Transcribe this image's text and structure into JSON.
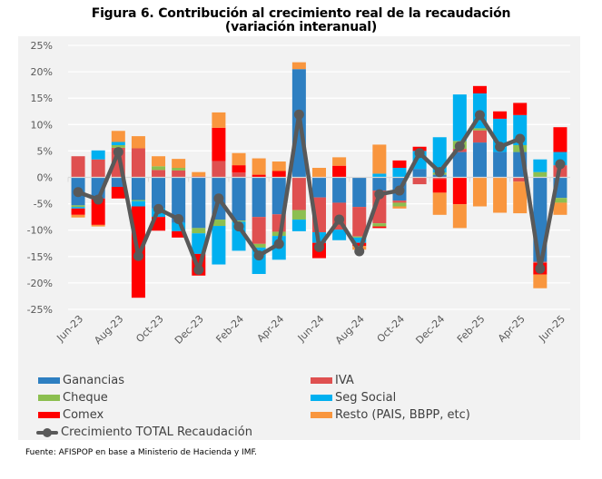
{
  "title_line1": "Figura 6.  Contribución al crecimiento real de la recaudación",
  "title_line2": "(variación interanual)",
  "source": "Fuente: AFISPOP en base a Ministerio de Hacienda y IMF.",
  "colors": {
    "Ganancias": "#2e7fc1",
    "IVA": "#df5050",
    "Cheque": "#8cbf50",
    "Seg Social": "#00b0f0",
    "Comex": "#ff0000",
    "Resto": "#f9963e",
    "Total": "#595959",
    "grid": "#ffffff",
    "axis": "#d9d9d9"
  },
  "legend": [
    {
      "key": "Ganancias",
      "label": "Ganancias"
    },
    {
      "key": "IVA",
      "label": "IVA"
    },
    {
      "key": "Cheque",
      "label": "Cheque"
    },
    {
      "key": "Seg Social",
      "label": "Seg Social"
    },
    {
      "key": "Comex",
      "label": "Comex"
    },
    {
      "key": "Resto",
      "label": "Resto (PAIS, BBPP, etc)"
    },
    {
      "key": "Total",
      "label": "Crecimiento TOTAL Recaudación"
    }
  ],
  "chart_data": {
    "type": "bar",
    "stacked": true,
    "title": "Figura 6. Contribución al crecimiento real de la recaudación (variación interanual)",
    "xlabel": "",
    "ylabel": "",
    "ylim": [
      -25,
      25
    ],
    "yticks": [
      25,
      20,
      15,
      10,
      5,
      0,
      -5,
      -10,
      -15,
      -20,
      -25
    ],
    "ytick_labels": [
      "25%",
      "20%",
      "15%",
      "10%",
      "5%",
      "0%",
      "-5%",
      "-10%",
      "-15%",
      "-20%",
      "-25%"
    ],
    "grid": true,
    "legend_position": "bottom",
    "categories": [
      "Jun-23",
      "Jul-23",
      "Aug-23",
      "Sep-23",
      "Oct-23",
      "Nov-23",
      "Dec-23",
      "Jan-24",
      "Feb-24",
      "Mar-24",
      "Apr-24",
      "May-24",
      "Jun-24",
      "Jul-24",
      "Aug-24",
      "Sep-24",
      "Oct-24",
      "Nov-24",
      "Dec-24",
      "Jan-25",
      "Feb-25",
      "Mar-25",
      "Apr-25",
      "May-25",
      "Jun-25"
    ],
    "tick_labels": [
      "Jun-23",
      "Aug-23",
      "Oct-23",
      "Dec-23",
      "Feb-24",
      "Apr-24",
      "Jun-24",
      "Aug-24",
      "Oct-24",
      "Dec-24",
      "Feb-25",
      "Apr-25",
      "Jun-25"
    ],
    "series": [
      {
        "name": "Ganancias",
        "values": [
          -5.3,
          -4.0,
          -1.8,
          -4.3,
          -5.9,
          -8.6,
          -9.6,
          -8.0,
          -8.2,
          -7.5,
          -7.0,
          20.5,
          -3.8,
          -4.8,
          -5.6,
          -2.5,
          -4.4,
          1.6,
          0.5,
          4.8,
          6.6,
          4.8,
          4.8,
          -16.0,
          -3.9
        ]
      },
      {
        "name": "IVA",
        "values": [
          4.0,
          3.4,
          5.6,
          5.5,
          1.4,
          1.3,
          0.2,
          3.1,
          0.9,
          -5.1,
          -3.3,
          -6.2,
          -6.6,
          -5.1,
          -5.6,
          -6.2,
          -0.4,
          -1.3,
          -0.3,
          0.6,
          2.3,
          0.0,
          -0.8,
          -0.2,
          2.3
        ]
      },
      {
        "name": "Cheque",
        "values": [
          -0.3,
          0.0,
          0.5,
          -0.2,
          0.7,
          0.5,
          -1.0,
          -1.2,
          -0.2,
          -0.7,
          -0.8,
          -1.8,
          0.0,
          0.0,
          -0.2,
          -0.6,
          -0.7,
          0.0,
          0.4,
          1.5,
          0.4,
          0.0,
          1.3,
          1.0,
          -0.9
        ]
      },
      {
        "name": "Seg Social",
        "values": [
          -0.3,
          1.7,
          0.6,
          -1.0,
          -1.6,
          -1.6,
          -3.9,
          -7.3,
          -5.5,
          -5.0,
          -4.5,
          -2.2,
          -2.0,
          -2.0,
          -1.0,
          0.7,
          1.8,
          3.4,
          6.7,
          8.8,
          6.6,
          6.3,
          5.7,
          2.4,
          2.5
        ]
      },
      {
        "name": "Comex",
        "values": [
          -1.2,
          -5.0,
          -2.2,
          -17.3,
          -2.6,
          -1.2,
          -4.1,
          6.3,
          1.4,
          0.5,
          1.2,
          0.0,
          -2.9,
          2.2,
          -0.6,
          -0.3,
          1.4,
          0.8,
          -2.6,
          -5.1,
          1.4,
          1.4,
          2.3,
          -2.2,
          4.7
        ]
      },
      {
        "name": "Resto",
        "values": [
          -0.5,
          -0.3,
          2.1,
          2.3,
          1.9,
          1.7,
          0.8,
          2.9,
          2.3,
          3.1,
          1.8,
          1.3,
          1.8,
          1.6,
          -0.7,
          5.5,
          -0.4,
          0.0,
          -4.2,
          -4.5,
          -5.5,
          -6.7,
          -6.0,
          -2.6,
          -2.3
        ]
      }
    ],
    "line": {
      "name": "Crecimiento TOTAL Recaudación",
      "values": [
        -2.8,
        -4.2,
        4.8,
        -14.9,
        -6.0,
        -7.9,
        -17.5,
        -4.0,
        -9.3,
        -14.8,
        -12.6,
        11.9,
        -13.2,
        -8.0,
        -14.0,
        -3.2,
        -2.5,
        4.6,
        1.0,
        5.9,
        11.8,
        5.8,
        7.3,
        -17.3,
        2.5
      ]
    }
  }
}
